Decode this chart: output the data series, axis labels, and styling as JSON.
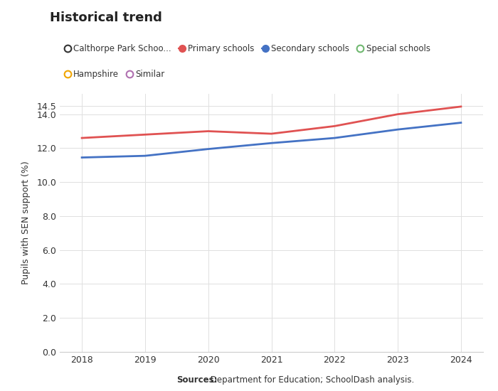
{
  "title": "Historical trend",
  "ylabel": "Pupils with SEN support (%)",
  "years": [
    2018,
    2019,
    2020,
    2021,
    2022,
    2023,
    2024
  ],
  "primary_schools": [
    12.6,
    12.8,
    13.0,
    12.85,
    13.3,
    14.0,
    14.45
  ],
  "secondary_schools": [
    11.45,
    11.55,
    11.95,
    12.3,
    12.6,
    13.1,
    13.5
  ],
  "primary_color": "#e05252",
  "secondary_color": "#4472c4",
  "ylim": [
    0,
    15.2
  ],
  "yticks": [
    0.0,
    2.0,
    4.0,
    6.0,
    8.0,
    10.0,
    12.0,
    14.0,
    14.5
  ],
  "ytick_labels": [
    "0.0",
    "2.0",
    "4.0",
    "6.0",
    "8.0",
    "10.0",
    "12.0",
    "14.0",
    "14.5"
  ],
  "background_color": "#ffffff",
  "grid_color": "#e0e0e0",
  "legend_row1": [
    {
      "label": "Calthorpe Park Schoo...",
      "color": "#333333",
      "filled": false
    },
    {
      "label": "Primary schools",
      "color": "#e05252",
      "filled": true
    },
    {
      "label": "Secondary schools",
      "color": "#4472c4",
      "filled": true
    },
    {
      "label": "Special schools",
      "color": "#70b870",
      "filled": false
    }
  ],
  "legend_row2": [
    {
      "label": "Hampshire",
      "color": "#f0a500",
      "filled": false
    },
    {
      "label": "Similar",
      "color": "#b070b0",
      "filled": false
    }
  ],
  "source_bold": "Sources:",
  "source_normal": " Department for Education; SchoolDash analysis."
}
